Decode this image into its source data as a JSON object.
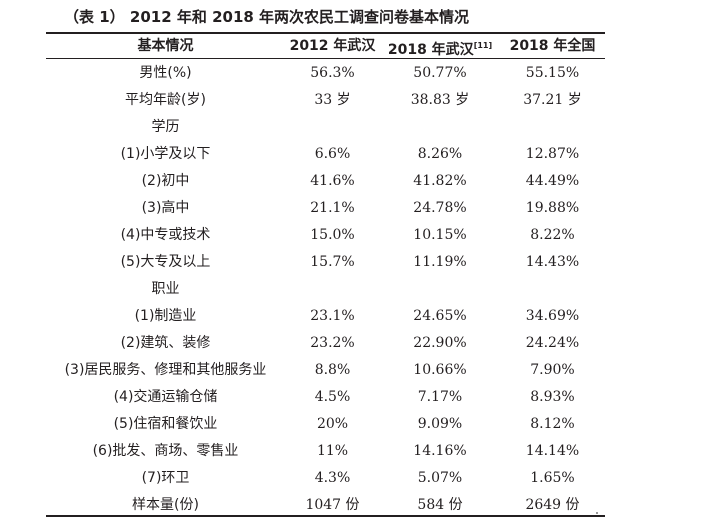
{
  "caption": "（表 1）  2012 年和 2018 年两次农民工调查问卷基本情况",
  "headers": {
    "col0": "基本情况",
    "col1": "2012 年武汉",
    "col2_main": "2018 年武汉",
    "col2_ref": "[11]",
    "col3": "2018 年全国"
  },
  "rows": [
    {
      "label": "男性(%)",
      "v1": "56.3%",
      "v2": "50.77%",
      "v3": "55.15%"
    },
    {
      "label": "平均年龄(岁)",
      "v1": "33 岁",
      "v2": "38.83 岁",
      "v3": "37.21 岁"
    },
    {
      "label": "学历",
      "v1": "",
      "v2": "",
      "v3": ""
    },
    {
      "label": "(1)小学及以下",
      "v1": "6.6%",
      "v2": "8.26%",
      "v3": "12.87%"
    },
    {
      "label": "(2)初中",
      "v1": "41.6%",
      "v2": "41.82%",
      "v3": "44.49%"
    },
    {
      "label": "(3)高中",
      "v1": "21.1%",
      "v2": "24.78%",
      "v3": "19.88%"
    },
    {
      "label": "(4)中专或技术",
      "v1": "15.0%",
      "v2": "10.15%",
      "v3": "8.22%"
    },
    {
      "label": "(5)大专及以上",
      "v1": "15.7%",
      "v2": "11.19%",
      "v3": "14.43%"
    },
    {
      "label": "职业",
      "v1": "",
      "v2": "",
      "v3": ""
    },
    {
      "label": "(1)制造业",
      "v1": "23.1%",
      "v2": "24.65%",
      "v3": "34.69%"
    },
    {
      "label": "(2)建筑、装修",
      "v1": "23.2%",
      "v2": "22.90%",
      "v3": "24.24%"
    },
    {
      "label": "(3)居民服务、修理和其他服务业",
      "v1": "8.8%",
      "v2": "10.66%",
      "v3": "7.90%"
    },
    {
      "label": "(4)交通运输仓储",
      "v1": "4.5%",
      "v2": "7.17%",
      "v3": "8.93%"
    },
    {
      "label": "(5)住宿和餐饮业",
      "v1": "20%",
      "v2": "9.09%",
      "v3": "8.12%"
    },
    {
      "label": "(6)批发、商场、零售业",
      "v1": "11%",
      "v2": "14.16%",
      "v3": "14.14%"
    },
    {
      "label": "(7)环卫",
      "v1": "4.3%",
      "v2": "5.07%",
      "v3": "1.65%"
    },
    {
      "label": "样本量(份)",
      "v1": "1047 份",
      "v2": "584 份",
      "v3": "2649 份"
    }
  ]
}
